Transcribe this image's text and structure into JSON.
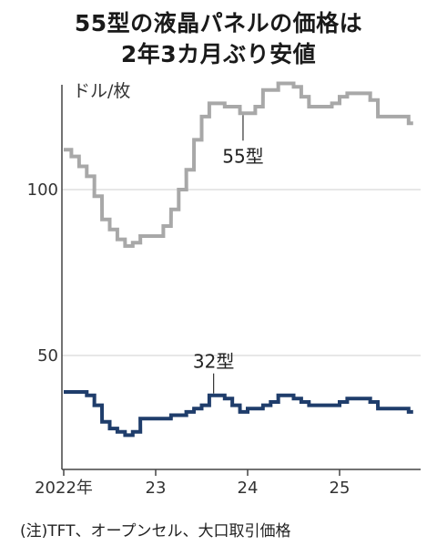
{
  "title_line1": "55型の液晶パネルの価格は",
  "title_line2": "2年3カ月ぶり安値",
  "note": "(注)TFT、オープンセル、大口取引価格",
  "chart_data": {
    "type": "line",
    "unit_label": "ドル/枚",
    "ylim": [
      0,
      140
    ],
    "y_ticks": [
      50,
      100
    ],
    "x_ticks": [
      {
        "label": "2022年",
        "value": 2022.0
      },
      {
        "label": "23",
        "value": 2023.0
      },
      {
        "label": "24",
        "value": 2024.0
      },
      {
        "label": "25",
        "value": 2025.0
      }
    ],
    "xlim": [
      2021.95,
      2025.8
    ],
    "colors": {
      "55": "#a8a8a8",
      "32": "#1f3d6b"
    },
    "series": [
      {
        "name": "55型",
        "color": "#a8a8a8",
        "values": [
          [
            2022.0,
            112
          ],
          [
            2022.083,
            110
          ],
          [
            2022.167,
            107
          ],
          [
            2022.25,
            104
          ],
          [
            2022.333,
            98
          ],
          [
            2022.417,
            91
          ],
          [
            2022.5,
            88
          ],
          [
            2022.583,
            85
          ],
          [
            2022.667,
            83
          ],
          [
            2022.75,
            84
          ],
          [
            2022.833,
            86
          ],
          [
            2022.917,
            86
          ],
          [
            2023.0,
            86
          ],
          [
            2023.083,
            89
          ],
          [
            2023.167,
            94
          ],
          [
            2023.25,
            100
          ],
          [
            2023.333,
            106
          ],
          [
            2023.417,
            115
          ],
          [
            2023.5,
            122
          ],
          [
            2023.583,
            126
          ],
          [
            2023.667,
            126
          ],
          [
            2023.75,
            125
          ],
          [
            2023.833,
            125
          ],
          [
            2023.917,
            123
          ],
          [
            2024.0,
            123
          ],
          [
            2024.083,
            125
          ],
          [
            2024.167,
            130
          ],
          [
            2024.25,
            130
          ],
          [
            2024.333,
            132
          ],
          [
            2024.417,
            132
          ],
          [
            2024.5,
            131
          ],
          [
            2024.583,
            128
          ],
          [
            2024.667,
            125
          ],
          [
            2024.75,
            125
          ],
          [
            2024.833,
            125
          ],
          [
            2024.917,
            126
          ],
          [
            2025.0,
            128
          ],
          [
            2025.083,
            129
          ],
          [
            2025.167,
            129
          ],
          [
            2025.25,
            129
          ],
          [
            2025.333,
            127
          ],
          [
            2025.417,
            122
          ],
          [
            2025.5,
            122
          ],
          [
            2025.583,
            122
          ],
          [
            2025.667,
            122
          ],
          [
            2025.75,
            120
          ]
        ]
      },
      {
        "name": "32型",
        "color": "#1f3d6b",
        "values": [
          [
            2022.0,
            39
          ],
          [
            2022.083,
            39
          ],
          [
            2022.167,
            39
          ],
          [
            2022.25,
            38
          ],
          [
            2022.333,
            35
          ],
          [
            2022.417,
            30
          ],
          [
            2022.5,
            28
          ],
          [
            2022.583,
            27
          ],
          [
            2022.667,
            26
          ],
          [
            2022.75,
            27
          ],
          [
            2022.833,
            31
          ],
          [
            2022.917,
            31
          ],
          [
            2023.0,
            31
          ],
          [
            2023.083,
            31
          ],
          [
            2023.167,
            32
          ],
          [
            2023.25,
            32
          ],
          [
            2023.333,
            33
          ],
          [
            2023.417,
            34
          ],
          [
            2023.5,
            35
          ],
          [
            2023.583,
            38
          ],
          [
            2023.667,
            38
          ],
          [
            2023.75,
            37
          ],
          [
            2023.833,
            35
          ],
          [
            2023.917,
            33
          ],
          [
            2024.0,
            34
          ],
          [
            2024.083,
            34
          ],
          [
            2024.167,
            35
          ],
          [
            2024.25,
            36
          ],
          [
            2024.333,
            38
          ],
          [
            2024.417,
            38
          ],
          [
            2024.5,
            37
          ],
          [
            2024.583,
            36
          ],
          [
            2024.667,
            35
          ],
          [
            2024.75,
            35
          ],
          [
            2024.833,
            35
          ],
          [
            2024.917,
            35
          ],
          [
            2025.0,
            36
          ],
          [
            2025.083,
            37
          ],
          [
            2025.167,
            37
          ],
          [
            2025.25,
            37
          ],
          [
            2025.333,
            36
          ],
          [
            2025.417,
            34
          ],
          [
            2025.5,
            34
          ],
          [
            2025.583,
            34
          ],
          [
            2025.667,
            34
          ],
          [
            2025.75,
            33
          ]
        ]
      }
    ],
    "annotations": [
      {
        "text": "55型",
        "series": "55型",
        "x": 2023.95
      },
      {
        "text": "32型",
        "series": "32型",
        "x": 2023.63
      }
    ]
  }
}
